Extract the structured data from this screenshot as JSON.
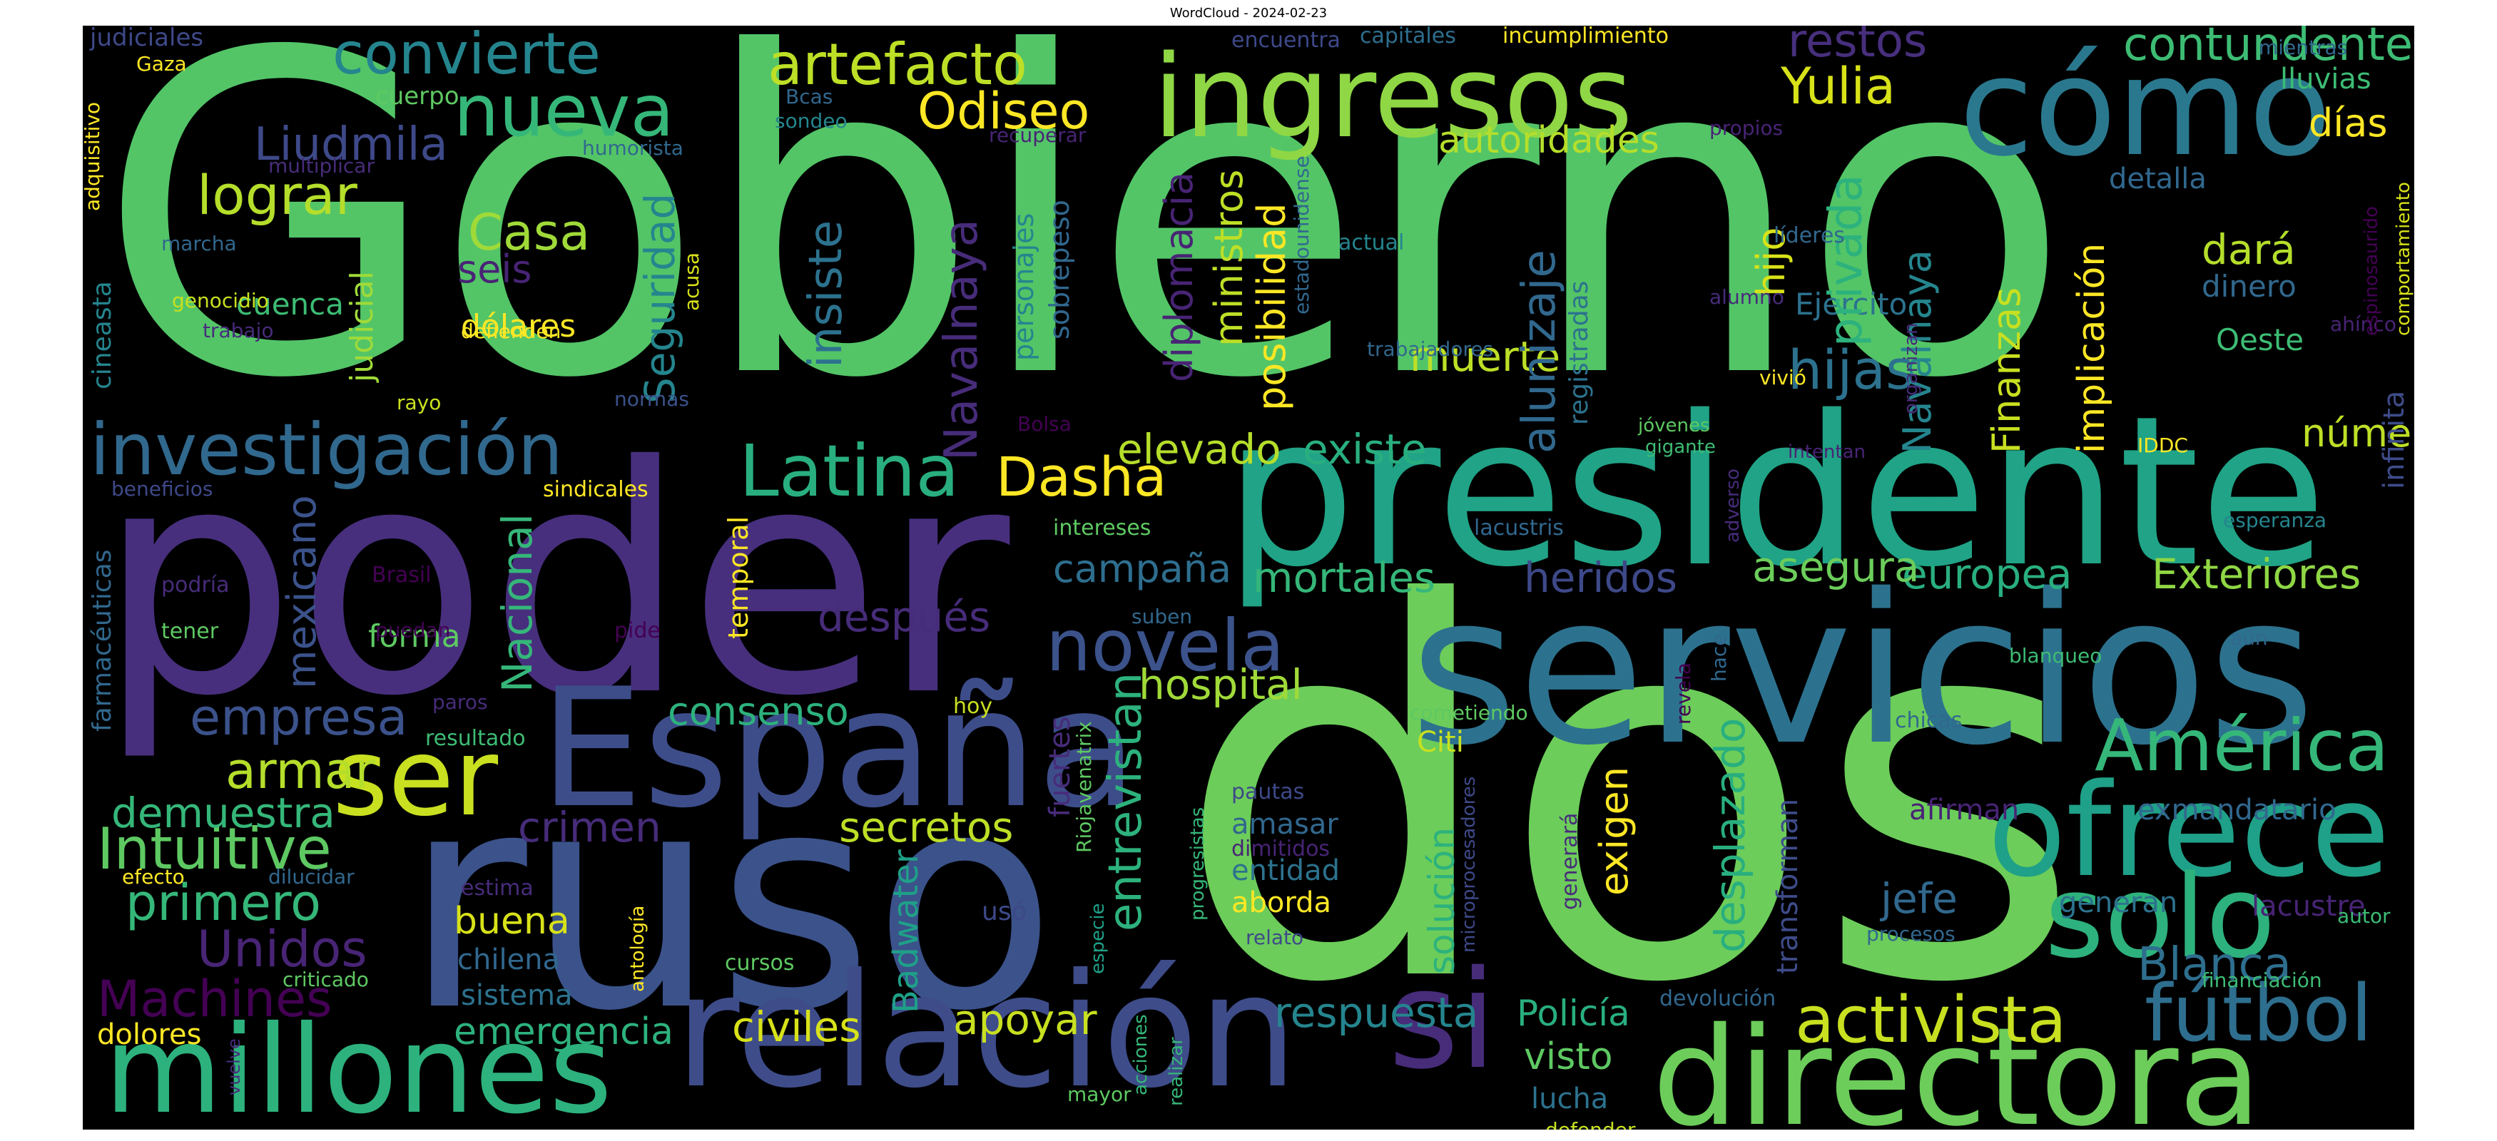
{
  "title": "WordCloud - 2024-02-23",
  "colors": {
    "background": "#000000",
    "palette": "viridis"
  },
  "words": {
    "gobierno": "Gobierno",
    "poder": "poder",
    "dos": "dos",
    "ruso": "ruso",
    "servicios": "servicios",
    "presidente": "presidente",
    "espana": "España",
    "relacion": "relación",
    "millones": "millones",
    "directora": "directora",
    "ingresos": "ingresos",
    "como": "cómo",
    "ofrece": "ofrece",
    "solo": "solo",
    "si": "si",
    "ser": "ser",
    "america": "América",
    "futbol": "fútbol",
    "investigacion": "investigación",
    "latina": "Latina",
    "novela": "novela",
    "nueva": "nueva",
    "convierte": "convierte",
    "artefacto": "artefacto",
    "odiseo": "Odiseo",
    "yulia": "Yulia",
    "contundente": "contundente",
    "restos": "restos",
    "lograr": "lograr",
    "casa": "Casa",
    "liudmila": "Liudmila",
    "dasha": "Dasha",
    "intuitive": "Intuitive",
    "machines": "Machines",
    "unidos": "Unidos",
    "primero": "primero",
    "empresa": "empresa",
    "armar": "armar",
    "demuestra": "demuestra",
    "crimen": "crimen",
    "secretos": "secretos",
    "activista": "activista",
    "respuesta": "respuesta",
    "policia": "Policía",
    "blanca": "Blanca",
    "exteriores": "Exteriores",
    "europea": "europea",
    "asegura": "asegura",
    "heridos": "heridos",
    "mortales": "mortales",
    "campana": "campaña",
    "despues": "después",
    "hospital": "hospital",
    "consenso": "consenso",
    "elevado": "elevado",
    "existe": "existe",
    "autoridades": "autoridades",
    "dias": "días",
    "dara": "dará",
    "dinero": "dinero",
    "oeste": "Oeste",
    "numero": "número",
    "hijas": "hijas",
    "hijo": "hijo",
    "muerte": "muerte",
    "ejercito": "Ejercito",
    "seguridad": "Seguridad",
    "nacional": "Nacional",
    "mexicano": "mexicano",
    "navalnaya": "Navalnaya",
    "navalnaya2": "Navalnaya",
    "insiste": "insiste",
    "diplomacia": "diplomacia",
    "ministros": "ministros",
    "posibilidad": "posibilidad",
    "alunizaje": "alunizaje",
    "privada": "privada",
    "finanzas": "Finanzas",
    "implicacion": "implicación",
    "entrevistan": "entrevistan",
    "desplazado": "desplazado",
    "exigen": "exigen",
    "solucion": "solución",
    "visto": "visto",
    "lucha": "lucha",
    "jefe": "jefe",
    "civiles": "civiles",
    "emergencia": "emergencia",
    "apoyar": "apoyar",
    "buena": "buena",
    "dolares": "dólares",
    "seis": "seis",
    "forma": "forma",
    "judicial": "judicial",
    "cuenca": "cuenca",
    "chilena": "chilena",
    "sistema": "sistema",
    "dolores": "dolores",
    "aborda": "aborda",
    "entidad": "entidad",
    "amasar": "amasar",
    "citi": "Citi",
    "badwater": "Badwater",
    "fuertes": "fuertes",
    "usó": "usó",
    "cursos": "cursos",
    "generan": "generan",
    "exmandatario": "exmandatario",
    "afirman": "afirman",
    "lacustre": "lacustre",
    "detalla": "detalla",
    "lluvias": "lluvias",
    "mientras": "mientras",
    "judiciales": "judiciales",
    "gaza": "Gaza",
    "cuerpo": "cuerpo",
    "adquisitivo": "adquisitivo",
    "multiplicar": "multiplicar",
    "humorista": "humorista",
    "marcha": "marcha",
    "genocidio": "genocidio",
    "trabajo": "trabajo",
    "acusa": "acusa",
    "defienden": "defienden",
    "rayo": "rayo",
    "normas": "normas",
    "cineasta": "cineasta",
    "beneficios": "beneficios",
    "sindicales": "sindicales",
    "farmaceuticas": "farmacéuticas",
    "podria": "podría",
    "brasil": "Brasil",
    "tener": "tener",
    "puedan": "puedan",
    "paros": "paros",
    "pide": "pide",
    "resultado": "resultado",
    "temporal": "temporal",
    "efecto": "efecto",
    "dilucidar": "dilucidar",
    "estima": "estima",
    "criticado": "criticado",
    "vuelve": "vuelve",
    "antologia": "antología",
    "mayor": "mayor",
    "realizar": "realizar",
    "acciones": "acciones",
    "especie": "especie",
    "progresistas": "progresistas",
    "riojavenatrix": "Riojavenatrix",
    "relato": "relato",
    "pautas": "pautas",
    "dimitidos": "dimitidos",
    "microprocesadores": "microprocesadores",
    "generara": "generará",
    "cometiendo": "cometiendo",
    "revela": "revela",
    "hace": "hace",
    "transforman": "transforman",
    "devolucion": "devolución",
    "procesos": "procesos",
    "defender": "defender",
    "chicas": "chicas",
    "blanqueo": "blanqueo",
    "aun": "aún",
    "adverso": "adverso",
    "lacustris": "lacustris",
    "esperanza": "esperanza",
    "intentan": "intentan",
    "organizan": "organizan",
    "jovenes": "jóvenes",
    "gigante": "gigante",
    "idcc": "IDDC",
    "infinita": "infinita",
    "comportamiento": "comportamiento",
    "espinosaurido": "espinosaurido",
    "ahinco": "ahínco",
    "financiacion": "financiación",
    "autor": "autor",
    "encuentra": "encuentra",
    "capitales": "capitales",
    "incumplimiento": "incumplimiento",
    "bcas": "Bcas",
    "sondeo": "sondeo",
    "recuperar": "recuperar",
    "propios": "propios",
    "estadounidense": "estadounidense",
    "registradas": "registradas",
    "lideres": "líderes",
    "alumno": "alumno",
    "vivio": "vivió",
    "trabajadores": "trabajadores",
    "actual": "actual",
    "personajes": "personajes",
    "sobrepeso": "sobrepeso",
    "bolsa": "Bolsa",
    "intereses": "intereses",
    "suben": "suben",
    "hoy": "hoy"
  }
}
